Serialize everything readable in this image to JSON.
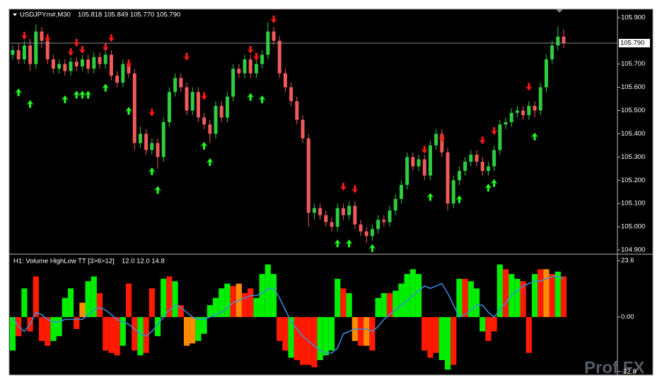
{
  "chart_data": [
    {
      "type": "candlestick",
      "title": "USDJPYm#,M30",
      "ohlc_text": "105.818 105.849 105.770 105.790",
      "open": [
        105.74,
        105.76,
        105.72,
        105.78,
        105.7,
        105.84,
        105.8,
        105.72,
        105.68,
        105.7,
        105.67,
        105.71,
        105.69,
        105.72,
        105.68,
        105.73,
        105.7,
        105.74,
        105.65,
        105.62,
        105.7,
        105.66,
        105.36,
        105.4,
        105.33,
        105.36,
        105.3,
        105.45,
        105.58,
        105.64,
        105.6,
        105.5,
        105.58,
        105.47,
        105.44,
        105.4,
        105.52,
        105.47,
        105.56,
        105.68,
        105.66,
        105.72,
        105.66,
        105.7,
        105.74,
        105.84,
        105.8,
        105.66,
        105.6,
        105.54,
        105.46,
        105.38,
        105.06,
        105.08,
        105.05,
        105.02,
        105.0,
        105.08,
        105.05,
        105.09,
        105.01,
        104.98,
        104.96,
        104.99,
        105.03,
        105.02,
        105.07,
        105.12,
        105.18,
        105.3,
        105.26,
        105.29,
        105.22,
        105.35,
        105.4,
        105.32,
        105.1,
        105.2,
        105.24,
        105.28,
        105.31,
        105.28,
        105.24,
        105.26,
        105.33,
        105.44,
        105.45,
        105.49,
        105.5,
        105.48,
        105.52,
        105.5,
        105.6,
        105.72,
        105.78,
        105.818
      ],
      "high": [
        105.78,
        105.79,
        105.8,
        105.81,
        105.87,
        105.86,
        105.82,
        105.74,
        105.72,
        105.72,
        105.73,
        105.73,
        105.74,
        105.74,
        105.75,
        105.75,
        105.76,
        105.76,
        105.67,
        105.72,
        105.72,
        105.68,
        105.43,
        105.42,
        105.38,
        105.38,
        105.47,
        105.6,
        105.66,
        105.66,
        105.62,
        105.6,
        105.6,
        105.49,
        105.46,
        105.54,
        105.54,
        105.58,
        105.7,
        105.7,
        105.74,
        105.74,
        105.72,
        105.76,
        105.88,
        105.86,
        105.82,
        105.68,
        105.62,
        105.56,
        105.48,
        105.4,
        105.1,
        105.1,
        105.07,
        105.04,
        105.1,
        105.1,
        105.11,
        105.11,
        105.03,
        105.0,
        105.01,
        105.05,
        105.05,
        105.09,
        105.14,
        105.2,
        105.32,
        105.32,
        105.31,
        105.31,
        105.37,
        105.42,
        105.42,
        105.34,
        105.22,
        105.26,
        105.3,
        105.33,
        105.33,
        105.3,
        105.28,
        105.35,
        105.46,
        105.47,
        105.51,
        105.52,
        105.52,
        105.54,
        105.54,
        105.62,
        105.74,
        105.8,
        105.86,
        105.849
      ],
      "low": [
        105.72,
        105.7,
        105.7,
        105.67,
        105.68,
        105.77,
        105.7,
        105.66,
        105.66,
        105.65,
        105.65,
        105.67,
        105.67,
        105.66,
        105.66,
        105.68,
        105.68,
        105.63,
        105.6,
        105.6,
        105.64,
        105.33,
        105.34,
        105.31,
        105.31,
        105.25,
        105.28,
        105.43,
        105.56,
        105.58,
        105.48,
        105.48,
        105.45,
        105.42,
        105.36,
        105.38,
        105.45,
        105.45,
        105.54,
        105.64,
        105.64,
        105.64,
        105.64,
        105.68,
        105.72,
        105.78,
        105.64,
        105.58,
        105.52,
        105.44,
        105.36,
        105.0,
        105.03,
        105.03,
        105.0,
        104.98,
        104.98,
        105.03,
        105.03,
        104.99,
        104.96,
        104.93,
        104.94,
        104.97,
        105.0,
        105.0,
        105.05,
        105.1,
        105.16,
        105.24,
        105.24,
        105.2,
        105.2,
        105.33,
        105.3,
        105.07,
        105.08,
        105.18,
        105.22,
        105.26,
        105.26,
        105.22,
        105.22,
        105.24,
        105.31,
        105.42,
        105.43,
        105.47,
        105.46,
        105.46,
        105.47,
        105.48,
        105.58,
        105.7,
        105.76,
        105.77
      ],
      "close": [
        105.76,
        105.72,
        105.78,
        105.7,
        105.84,
        105.8,
        105.72,
        105.68,
        105.7,
        105.67,
        105.71,
        105.69,
        105.72,
        105.68,
        105.73,
        105.7,
        105.74,
        105.65,
        105.62,
        105.7,
        105.66,
        105.36,
        105.4,
        105.33,
        105.36,
        105.3,
        105.45,
        105.58,
        105.64,
        105.6,
        105.5,
        105.58,
        105.47,
        105.44,
        105.4,
        105.52,
        105.47,
        105.56,
        105.68,
        105.66,
        105.72,
        105.66,
        105.7,
        105.74,
        105.84,
        105.8,
        105.66,
        105.6,
        105.54,
        105.46,
        105.38,
        105.06,
        105.08,
        105.05,
        105.02,
        105.0,
        105.08,
        105.05,
        105.09,
        105.01,
        104.98,
        104.96,
        104.99,
        105.03,
        105.02,
        105.07,
        105.12,
        105.18,
        105.3,
        105.26,
        105.29,
        105.22,
        105.35,
        105.4,
        105.32,
        105.1,
        105.2,
        105.24,
        105.28,
        105.31,
        105.28,
        105.24,
        105.26,
        105.33,
        105.44,
        105.45,
        105.49,
        105.5,
        105.48,
        105.52,
        105.5,
        105.6,
        105.72,
        105.78,
        105.818,
        105.79
      ],
      "up_color": "#2ecc40",
      "down_color": "#f05a5a",
      "ylim": [
        104.888,
        105.933
      ],
      "yticks": [
        {
          "value": 105.9,
          "label": "105.900"
        },
        {
          "value": 105.7,
          "label": "105.700"
        },
        {
          "value": 105.6,
          "label": "105.600"
        },
        {
          "value": 105.5,
          "label": "105.500"
        },
        {
          "value": 105.4,
          "label": "105.400"
        },
        {
          "value": 105.3,
          "label": "105.300"
        },
        {
          "value": 105.2,
          "label": "105.200"
        },
        {
          "value": 105.1,
          "label": "105.100"
        },
        {
          "value": 105.0,
          "label": "105.000"
        },
        {
          "value": 104.9,
          "label": "104.900"
        }
      ],
      "current_price": {
        "value": 105.79,
        "label": "105.790"
      },
      "signals": {
        "down": {
          "color": "#ff1a1a",
          "index": [
            2,
            6,
            10,
            11,
            12,
            16,
            17,
            20,
            24,
            30,
            33,
            41,
            42,
            45,
            57,
            59,
            71,
            74,
            81,
            83,
            89
          ],
          "values": [
            105.82,
            105.81,
            105.75,
            105.79,
            105.76,
            105.77,
            105.81,
            105.7,
            105.49,
            105.73,
            105.56,
            105.76,
            105.73,
            105.89,
            105.17,
            105.16,
            105.33,
            105.38,
            105.37,
            105.41,
            105.6
          ]
        },
        "up": {
          "color": "#22ff22",
          "index": [
            1,
            3,
            9,
            11,
            12,
            13,
            16,
            20,
            24,
            25,
            33,
            34,
            41,
            43,
            56,
            58,
            62,
            72,
            77,
            82,
            83,
            90
          ],
          "values": [
            105.58,
            105.53,
            105.55,
            105.57,
            105.57,
            105.57,
            105.6,
            105.5,
            105.24,
            105.16,
            105.35,
            105.28,
            105.56,
            105.55,
            104.93,
            104.93,
            104.91,
            105.13,
            105.12,
            105.17,
            105.19,
            105.39
          ]
        }
      }
    },
    {
      "type": "bar",
      "title": "H1: Volume HighLow TT [3>6>12]",
      "readout": "12.0 12.0 14.8",
      "values": [
        -14,
        -8,
        12,
        -6,
        17,
        -10,
        -12,
        -10,
        -8,
        8,
        12,
        -5,
        6,
        15,
        17,
        10,
        -14,
        -15,
        -16,
        -12,
        14,
        -14,
        -16,
        -15,
        12,
        -8,
        16,
        17,
        15,
        5,
        -12,
        -11,
        -10,
        -7,
        5,
        8,
        12,
        14,
        13,
        14,
        10,
        12,
        8,
        18,
        22,
        18,
        -10,
        -14,
        -17,
        -18,
        -20,
        -20,
        -21,
        -18,
        -16,
        -14,
        16,
        12,
        10,
        -10,
        -12,
        -12,
        -14,
        8,
        10,
        10,
        11,
        14,
        18,
        20,
        18,
        -14,
        -17,
        -15,
        -18,
        -22,
        -20,
        16,
        16,
        15,
        12,
        -6,
        -10,
        -6,
        22,
        20,
        18,
        16,
        15,
        -15,
        18,
        20,
        20,
        18,
        19,
        17
      ],
      "bar_colors": [
        "#00ee00",
        "#ff1a00",
        "#00ee00",
        "#ff1a00",
        "#ff1a00",
        "#ff1a00",
        "#ff1a00",
        "#00ee00",
        "#00ee00",
        "#00ee00",
        "#00ee00",
        "#ff1a00",
        "#ff8c00",
        "#00ee00",
        "#00ee00",
        "#ff1a00",
        "#ff1a00",
        "#ff1a00",
        "#ff1a00",
        "#00ee00",
        "#ff1a00",
        "#ff1a00",
        "#00ee00",
        "#ff1a00",
        "#ff1a00",
        "#00ee00",
        "#00ee00",
        "#ff1a00",
        "#00ee00",
        "#ff1a00",
        "#ff8c00",
        "#ff8c00",
        "#00ee00",
        "#00ee00",
        "#00ee00",
        "#00ee00",
        "#00ee00",
        "#00ee00",
        "#ff1a00",
        "#ff8c00",
        "#ff1a00",
        "#ff1a00",
        "#00ee00",
        "#00ee00",
        "#00ee00",
        "#00ee00",
        "#ff1a00",
        "#ff1a00",
        "#00ee00",
        "#ff1a00",
        "#ff1a00",
        "#ff1a00",
        "#ff1a00",
        "#00ee00",
        "#00ee00",
        "#00ee00",
        "#00ee00",
        "#ff1a00",
        "#00ee00",
        "#ff8c00",
        "#ff1a00",
        "#ff8c00",
        "#ff1a00",
        "#00ee00",
        "#00ee00",
        "#ff1a00",
        "#00ee00",
        "#00ee00",
        "#00ee00",
        "#00ee00",
        "#00ee00",
        "#ff1a00",
        "#ff1a00",
        "#ff1a00",
        "#00ee00",
        "#00ee00",
        "#ff1a00",
        "#00ee00",
        "#ff1a00",
        "#00ee00",
        "#00ee00",
        "#00ee00",
        "#ff1a00",
        "#ff1a00",
        "#00ee00",
        "#ff1a00",
        "#00ee00",
        "#00ee00",
        "#ff1a00",
        "#ff1a00",
        "#00ee00",
        "#ff1a00",
        "#ff8c00",
        "#ff1a00",
        "#00ee00",
        "#ff1a00"
      ],
      "line": {
        "color": "#3d8fe0",
        "values": [
          0,
          -4,
          -6,
          -3,
          2,
          1,
          -1,
          -2,
          -2,
          -1,
          -1,
          -1,
          -1,
          1,
          3,
          4,
          3,
          1,
          -1,
          -2,
          -3,
          -5,
          -7,
          -8,
          -6,
          -3,
          0,
          3,
          5,
          4,
          2,
          0,
          -1,
          -1,
          0,
          1,
          2,
          4,
          6,
          7,
          8,
          9,
          9,
          10,
          12,
          12,
          8,
          3,
          -2,
          -5,
          -8,
          -10,
          -12,
          -14,
          -15,
          -15,
          -13,
          -7,
          -6,
          -5,
          -5,
          -5,
          -6,
          -4,
          -1,
          1,
          3,
          5,
          7,
          9,
          11,
          13,
          12,
          13,
          14,
          10,
          5,
          0,
          1,
          3,
          5,
          5,
          2,
          0,
          3,
          6,
          9,
          11,
          13,
          14,
          15,
          15,
          16,
          17,
          17,
          16
        ]
      },
      "ylim": [
        -23.9,
        25.7
      ],
      "yticks": [
        23.6,
        {
          "value": 0,
          "label": "0.00"
        },
        -22.8
      ]
    }
  ],
  "watermark": "Prof FX"
}
